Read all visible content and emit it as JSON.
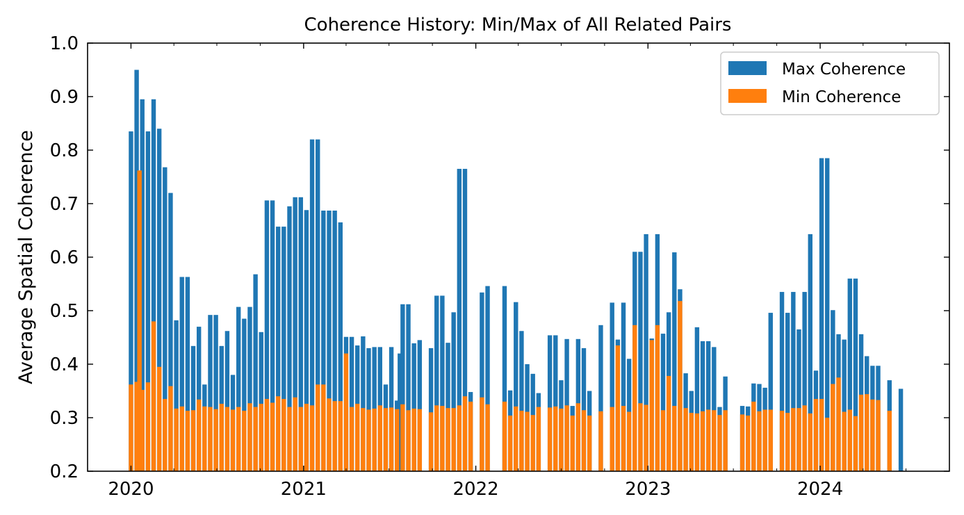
{
  "chart_data": {
    "type": "bar",
    "title": "Coherence History: Min/Max of All Related Pairs",
    "xlabel": "",
    "ylabel": "Average Spatial Coherence",
    "ylim": [
      0.2,
      1.0
    ],
    "yticks": [
      "0.2",
      "0.3",
      "0.4",
      "0.5",
      "0.6",
      "0.7",
      "0.8",
      "0.9",
      "1.0"
    ],
    "xticks": [
      "2020",
      "2021",
      "2022",
      "2023",
      "2024"
    ],
    "legend": {
      "placement": "top-right"
    },
    "grid": false,
    "series": [
      {
        "name": "Max Coherence",
        "color": "#1f77b4",
        "points": [
          [
            "2020-01-01",
            0.835
          ],
          [
            "2020-01-13",
            0.95
          ],
          [
            "2020-01-25",
            0.895
          ],
          [
            "2020-02-06",
            0.835
          ],
          [
            "2020-02-18",
            0.895
          ],
          [
            "2020-03-01",
            0.84
          ],
          [
            "2020-03-13",
            0.768
          ],
          [
            "2020-03-25",
            0.72
          ],
          [
            "2020-04-06",
            0.482
          ],
          [
            "2020-04-18",
            0.563
          ],
          [
            "2020-04-30",
            0.563
          ],
          [
            "2020-05-12",
            0.434
          ],
          [
            "2020-05-24",
            0.47
          ],
          [
            "2020-06-05",
            0.362
          ],
          [
            "2020-06-17",
            0.492
          ],
          [
            "2020-06-29",
            0.492
          ],
          [
            "2020-07-11",
            0.434
          ],
          [
            "2020-07-23",
            0.462
          ],
          [
            "2020-08-04",
            0.38
          ],
          [
            "2020-08-16",
            0.507
          ],
          [
            "2020-08-28",
            0.485
          ],
          [
            "2020-09-09",
            0.507
          ],
          [
            "2020-09-21",
            0.568
          ],
          [
            "2020-10-03",
            0.46
          ],
          [
            "2020-10-15",
            0.706
          ],
          [
            "2020-10-27",
            0.706
          ],
          [
            "2020-11-08",
            0.657
          ],
          [
            "2020-11-20",
            0.657
          ],
          [
            "2020-12-02",
            0.695
          ],
          [
            "2020-12-14",
            0.712
          ],
          [
            "2020-12-26",
            0.712
          ],
          [
            "2021-01-07",
            0.688
          ],
          [
            "2021-01-19",
            0.82
          ],
          [
            "2021-01-31",
            0.82
          ],
          [
            "2021-02-12",
            0.687
          ],
          [
            "2021-02-24",
            0.687
          ],
          [
            "2021-03-08",
            0.687
          ],
          [
            "2021-03-20",
            0.665
          ],
          [
            "2021-04-01",
            0.451
          ],
          [
            "2021-04-13",
            0.451
          ],
          [
            "2021-04-25",
            0.435
          ],
          [
            "2021-05-07",
            0.452
          ],
          [
            "2021-05-19",
            0.43
          ],
          [
            "2021-05-31",
            0.432
          ],
          [
            "2021-06-12",
            0.432
          ],
          [
            "2021-06-24",
            0.362
          ],
          [
            "2021-07-06",
            0.432
          ],
          [
            "2021-07-18",
            0.332
          ],
          [
            "2021-07-24",
            0.42
          ],
          [
            "2021-07-30",
            0.512
          ],
          [
            "2021-08-11",
            0.512
          ],
          [
            "2021-08-23",
            0.439
          ],
          [
            "2021-09-04",
            0.445
          ],
          [
            "2021-09-28",
            0.43
          ],
          [
            "2021-10-10",
            0.528
          ],
          [
            "2021-10-22",
            0.528
          ],
          [
            "2021-11-03",
            0.44
          ],
          [
            "2021-11-15",
            0.497
          ],
          [
            "2021-11-27",
            0.765
          ],
          [
            "2021-12-09",
            0.765
          ],
          [
            "2021-12-21",
            0.348
          ],
          [
            "2022-01-14",
            0.534
          ],
          [
            "2022-01-26",
            0.546
          ],
          [
            "2022-03-03",
            0.546
          ],
          [
            "2022-03-15",
            0.351
          ],
          [
            "2022-03-27",
            0.516
          ],
          [
            "2022-04-08",
            0.462
          ],
          [
            "2022-04-20",
            0.4
          ],
          [
            "2022-05-02",
            0.382
          ],
          [
            "2022-05-14",
            0.346
          ],
          [
            "2022-06-07",
            0.454
          ],
          [
            "2022-06-19",
            0.454
          ],
          [
            "2022-07-01",
            0.37
          ],
          [
            "2022-07-13",
            0.447
          ],
          [
            "2022-07-25",
            0.322
          ],
          [
            "2022-08-06",
            0.447
          ],
          [
            "2022-08-18",
            0.43
          ],
          [
            "2022-08-30",
            0.35
          ],
          [
            "2022-09-23",
            0.473
          ],
          [
            "2022-10-17",
            0.515
          ],
          [
            "2022-10-29",
            0.446
          ],
          [
            "2022-11-10",
            0.515
          ],
          [
            "2022-11-22",
            0.41
          ],
          [
            "2022-12-04",
            0.61
          ],
          [
            "2022-12-16",
            0.61
          ],
          [
            "2022-12-28",
            0.643
          ],
          [
            "2023-01-09",
            0.448
          ],
          [
            "2023-01-21",
            0.643
          ],
          [
            "2023-02-02",
            0.457
          ],
          [
            "2023-02-14",
            0.497
          ],
          [
            "2023-02-26",
            0.609
          ],
          [
            "2023-03-10",
            0.54
          ],
          [
            "2023-03-22",
            0.383
          ],
          [
            "2023-04-03",
            0.35
          ],
          [
            "2023-04-15",
            0.469
          ],
          [
            "2023-04-27",
            0.443
          ],
          [
            "2023-05-09",
            0.443
          ],
          [
            "2023-05-21",
            0.432
          ],
          [
            "2023-06-02",
            0.32
          ],
          [
            "2023-06-14",
            0.377
          ],
          [
            "2023-07-20",
            0.322
          ],
          [
            "2023-08-01",
            0.321
          ],
          [
            "2023-08-13",
            0.364
          ],
          [
            "2023-08-25",
            0.363
          ],
          [
            "2023-09-06",
            0.356
          ],
          [
            "2023-09-18",
            0.496
          ],
          [
            "2023-10-12",
            0.535
          ],
          [
            "2023-10-24",
            0.496
          ],
          [
            "2023-11-05",
            0.535
          ],
          [
            "2023-11-17",
            0.465
          ],
          [
            "2023-11-29",
            0.535
          ],
          [
            "2023-12-11",
            0.643
          ],
          [
            "2023-12-23",
            0.388
          ],
          [
            "2024-01-04",
            0.785
          ],
          [
            "2024-01-16",
            0.785
          ],
          [
            "2024-01-28",
            0.501
          ],
          [
            "2024-02-09",
            0.456
          ],
          [
            "2024-02-21",
            0.446
          ],
          [
            "2024-03-04",
            0.56
          ],
          [
            "2024-03-16",
            0.56
          ],
          [
            "2024-03-28",
            0.456
          ],
          [
            "2024-04-09",
            0.415
          ],
          [
            "2024-04-21",
            0.397
          ],
          [
            "2024-05-03",
            0.397
          ],
          [
            "2024-05-27",
            0.37
          ],
          [
            "2024-06-20",
            0.354
          ]
        ]
      },
      {
        "name": "Min Coherence",
        "color": "#ff7f0e",
        "points": [
          [
            "2020-01-01",
            0.362
          ],
          [
            "2020-01-13",
            0.367
          ],
          [
            "2020-01-19",
            0.762
          ],
          [
            "2020-01-25",
            0.352
          ],
          [
            "2020-02-06",
            0.366
          ],
          [
            "2020-02-18",
            0.48
          ],
          [
            "2020-03-01",
            0.395
          ],
          [
            "2020-03-13",
            0.335
          ],
          [
            "2020-03-25",
            0.359
          ],
          [
            "2020-04-06",
            0.317
          ],
          [
            "2020-04-18",
            0.321
          ],
          [
            "2020-04-30",
            0.313
          ],
          [
            "2020-05-12",
            0.314
          ],
          [
            "2020-05-24",
            0.334
          ],
          [
            "2020-06-05",
            0.321
          ],
          [
            "2020-06-17",
            0.32
          ],
          [
            "2020-06-29",
            0.316
          ],
          [
            "2020-07-11",
            0.326
          ],
          [
            "2020-07-23",
            0.32
          ],
          [
            "2020-08-04",
            0.315
          ],
          [
            "2020-08-16",
            0.32
          ],
          [
            "2020-08-28",
            0.313
          ],
          [
            "2020-09-09",
            0.327
          ],
          [
            "2020-09-21",
            0.32
          ],
          [
            "2020-10-03",
            0.326
          ],
          [
            "2020-10-15",
            0.335
          ],
          [
            "2020-10-27",
            0.328
          ],
          [
            "2020-11-08",
            0.34
          ],
          [
            "2020-11-20",
            0.335
          ],
          [
            "2020-12-02",
            0.32
          ],
          [
            "2020-12-14",
            0.338
          ],
          [
            "2020-12-26",
            0.32
          ],
          [
            "2021-01-07",
            0.326
          ],
          [
            "2021-01-19",
            0.323
          ],
          [
            "2021-01-31",
            0.362
          ],
          [
            "2021-02-12",
            0.362
          ],
          [
            "2021-02-24",
            0.336
          ],
          [
            "2021-03-08",
            0.331
          ],
          [
            "2021-03-20",
            0.331
          ],
          [
            "2021-04-01",
            0.42
          ],
          [
            "2021-04-13",
            0.32
          ],
          [
            "2021-04-25",
            0.326
          ],
          [
            "2021-05-07",
            0.318
          ],
          [
            "2021-05-19",
            0.315
          ],
          [
            "2021-05-31",
            0.317
          ],
          [
            "2021-06-12",
            0.323
          ],
          [
            "2021-06-24",
            0.318
          ],
          [
            "2021-07-06",
            0.319
          ],
          [
            "2021-07-18",
            0.316
          ],
          [
            "2021-07-30",
            0.325
          ],
          [
            "2021-08-11",
            0.314
          ],
          [
            "2021-08-23",
            0.317
          ],
          [
            "2021-09-04",
            0.316
          ],
          [
            "2021-09-28",
            0.31
          ],
          [
            "2021-10-10",
            0.323
          ],
          [
            "2021-10-22",
            0.322
          ],
          [
            "2021-11-03",
            0.318
          ],
          [
            "2021-11-15",
            0.318
          ],
          [
            "2021-11-27",
            0.323
          ],
          [
            "2021-12-09",
            0.34
          ],
          [
            "2021-12-21",
            0.33
          ],
          [
            "2022-01-14",
            0.338
          ],
          [
            "2022-01-26",
            0.325
          ],
          [
            "2022-03-03",
            0.33
          ],
          [
            "2022-03-15",
            0.304
          ],
          [
            "2022-03-27",
            0.321
          ],
          [
            "2022-04-08",
            0.313
          ],
          [
            "2022-04-20",
            0.311
          ],
          [
            "2022-05-02",
            0.305
          ],
          [
            "2022-05-14",
            0.32
          ],
          [
            "2022-06-07",
            0.319
          ],
          [
            "2022-06-19",
            0.321
          ],
          [
            "2022-07-01",
            0.317
          ],
          [
            "2022-07-13",
            0.323
          ],
          [
            "2022-07-25",
            0.304
          ],
          [
            "2022-08-06",
            0.327
          ],
          [
            "2022-08-18",
            0.314
          ],
          [
            "2022-08-30",
            0.304
          ],
          [
            "2022-09-23",
            0.312
          ],
          [
            "2022-10-17",
            0.32
          ],
          [
            "2022-10-29",
            0.435
          ],
          [
            "2022-11-10",
            0.322
          ],
          [
            "2022-11-22",
            0.311
          ],
          [
            "2022-12-04",
            0.473
          ],
          [
            "2022-12-16",
            0.327
          ],
          [
            "2022-12-28",
            0.324
          ],
          [
            "2023-01-09",
            0.445
          ],
          [
            "2023-01-21",
            0.473
          ],
          [
            "2023-02-02",
            0.314
          ],
          [
            "2023-02-14",
            0.378
          ],
          [
            "2023-02-26",
            0.322
          ],
          [
            "2023-03-10",
            0.518
          ],
          [
            "2023-03-22",
            0.318
          ],
          [
            "2023-04-03",
            0.309
          ],
          [
            "2023-04-15",
            0.308
          ],
          [
            "2023-04-27",
            0.312
          ],
          [
            "2023-05-09",
            0.315
          ],
          [
            "2023-05-21",
            0.314
          ],
          [
            "2023-06-02",
            0.305
          ],
          [
            "2023-06-14",
            0.314
          ],
          [
            "2023-07-20",
            0.306
          ],
          [
            "2023-08-01",
            0.304
          ],
          [
            "2023-08-13",
            0.33
          ],
          [
            "2023-08-25",
            0.312
          ],
          [
            "2023-09-06",
            0.315
          ],
          [
            "2023-09-18",
            0.315
          ],
          [
            "2023-10-12",
            0.313
          ],
          [
            "2023-10-24",
            0.309
          ],
          [
            "2023-11-05",
            0.318
          ],
          [
            "2023-11-17",
            0.318
          ],
          [
            "2023-11-29",
            0.323
          ],
          [
            "2023-12-11",
            0.308
          ],
          [
            "2023-12-23",
            0.335
          ],
          [
            "2024-01-04",
            0.335
          ],
          [
            "2024-01-16",
            0.3
          ],
          [
            "2024-01-28",
            0.363
          ],
          [
            "2024-02-09",
            0.375
          ],
          [
            "2024-02-21",
            0.311
          ],
          [
            "2024-03-04",
            0.315
          ],
          [
            "2024-03-16",
            0.303
          ],
          [
            "2024-03-28",
            0.343
          ],
          [
            "2024-04-09",
            0.344
          ],
          [
            "2024-04-21",
            0.334
          ],
          [
            "2024-05-03",
            0.333
          ],
          [
            "2024-05-27",
            0.313
          ]
        ]
      }
    ]
  }
}
